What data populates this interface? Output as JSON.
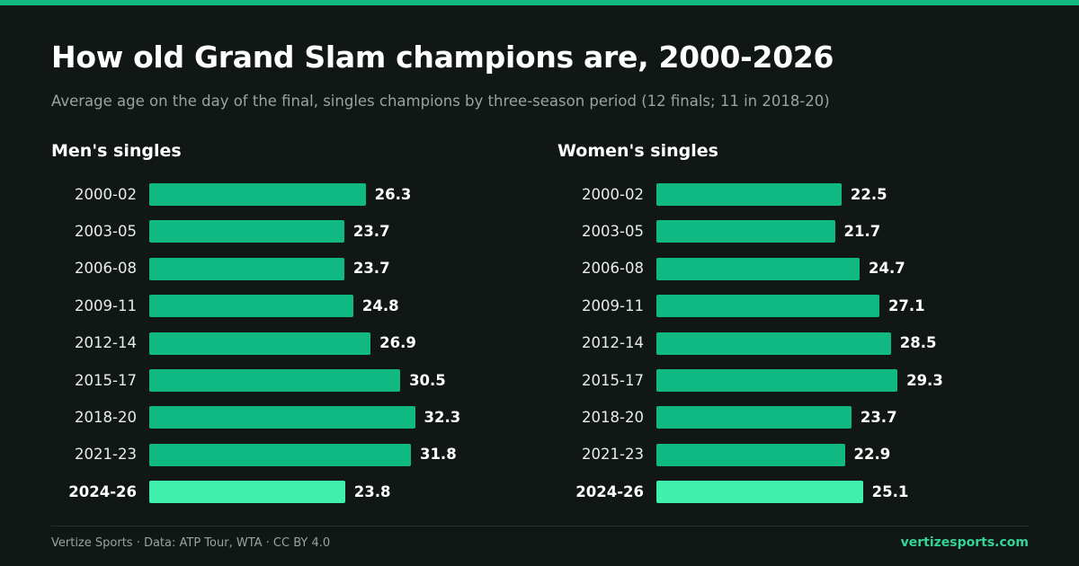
{
  "header": {
    "title": "How old Grand Slam champions are, 2000-2026",
    "subtitle": "Average age on the day of the final, singles champions by three-season period (12 finals; 11 in 2018-20)"
  },
  "colors": {
    "background": "#101715",
    "bar": "#10b981",
    "bar_highlight": "#3ef0ac",
    "accent": "#34d399"
  },
  "chart_data": [
    {
      "type": "bar",
      "orientation": "horizontal",
      "title": "Men's singles",
      "categories": [
        "2000-02",
        "2003-05",
        "2006-08",
        "2009-11",
        "2012-14",
        "2015-17",
        "2018-20",
        "2021-23",
        "2024-26"
      ],
      "values": [
        26.3,
        23.7,
        23.7,
        24.8,
        26.9,
        30.5,
        32.3,
        31.8,
        23.8
      ],
      "value_labels": [
        "26.3",
        "23.7",
        "23.7",
        "24.8",
        "26.9",
        "30.5",
        "32.3",
        "31.8",
        "23.8"
      ],
      "highlight": "2024-26",
      "xlim": [
        0,
        51
      ]
    },
    {
      "type": "bar",
      "orientation": "horizontal",
      "title": "Women's singles",
      "categories": [
        "2000-02",
        "2003-05",
        "2006-08",
        "2009-11",
        "2012-14",
        "2015-17",
        "2018-20",
        "2021-23",
        "2024-26"
      ],
      "values": [
        22.5,
        21.7,
        24.7,
        27.1,
        28.5,
        29.3,
        23.7,
        22.9,
        25.1
      ],
      "value_labels": [
        "22.5",
        "21.7",
        "24.7",
        "27.1",
        "28.5",
        "29.3",
        "23.7",
        "22.9",
        "25.1"
      ],
      "highlight": "2024-26",
      "xlim": [
        0,
        51
      ]
    }
  ],
  "footer": {
    "credit": "Vertize Sports · Data: ATP Tour, WTA · CC BY 4.0",
    "site": "vertizesports.com"
  }
}
